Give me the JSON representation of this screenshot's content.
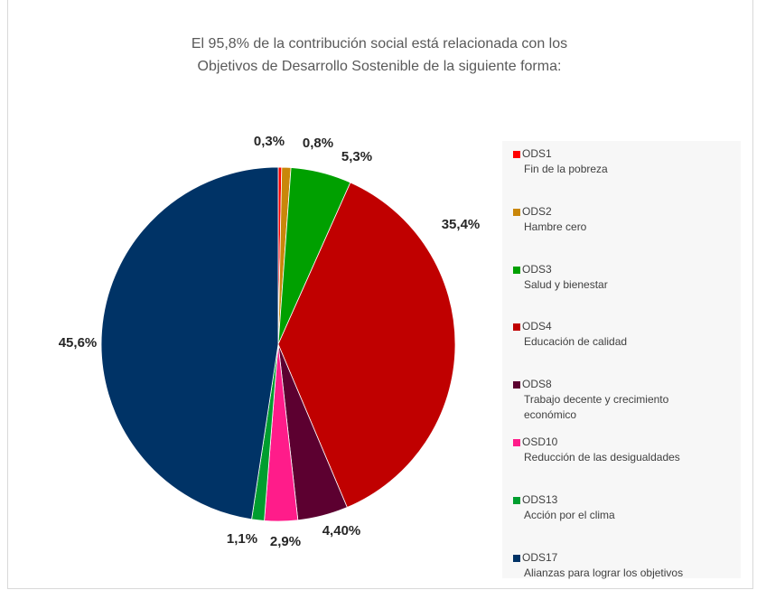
{
  "chart_data": {
    "type": "pie",
    "title": "El 95,8% de la contribución  social está relacionada con  los",
    "subtitle": "Objetivos de Desarrollo Sostenible de la siguiente forma:",
    "legend_position": "right",
    "slices": [
      {
        "code": "ODS1",
        "desc": "Fin de la pobreza",
        "value": 0.3,
        "label": "0,3%",
        "color": "#ff0000"
      },
      {
        "code": "ODS2",
        "desc": "Hambre cero",
        "value": 0.8,
        "label": "0,8%",
        "color": "#c9870a"
      },
      {
        "code": "ODS3",
        "desc": "Salud y bienestar",
        "value": 5.3,
        "label": "5,3%",
        "color": "#00a000"
      },
      {
        "code": "ODS4",
        "desc": "Educación de calidad",
        "value": 35.4,
        "label": "35,4%",
        "color": "#c00000"
      },
      {
        "code": "ODS8",
        "desc": "Trabajo decente y crecimiento",
        "desc2": "económico",
        "value": 4.4,
        "label": "4,40%",
        "color": "#5c0030"
      },
      {
        "code": "OSD10",
        "desc": "Reducción de las desigualdades",
        "value": 2.9,
        "label": "2,9%",
        "color": "#ff1c8a"
      },
      {
        "code": "ODS13",
        "desc": "Acción por el clima",
        "value": 1.1,
        "label": "1,1%",
        "color": "#009e2f"
      },
      {
        "code": "ODS17",
        "desc": "Alianzas para lograr los objetivos",
        "value": 45.6,
        "label": "45,6%",
        "color": "#003366"
      }
    ]
  }
}
